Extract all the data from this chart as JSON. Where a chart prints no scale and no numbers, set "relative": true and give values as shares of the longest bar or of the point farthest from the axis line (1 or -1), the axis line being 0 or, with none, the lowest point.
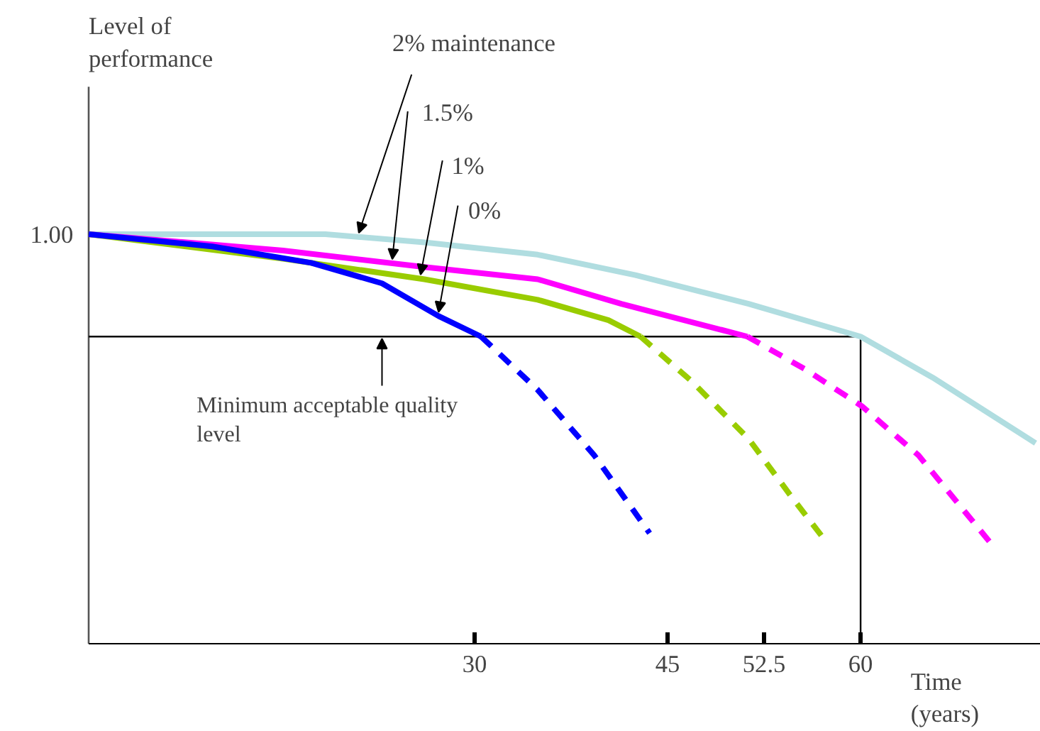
{
  "chart_data": {
    "type": "line",
    "relative": true,
    "xlabel": "Time (years)",
    "xlim": [
      0,
      74
    ],
    "xticks": [
      30,
      45,
      52.5,
      60
    ],
    "grid": false,
    "legend": false,
    "series": [
      {
        "name": "2% maintenance",
        "color": "#b0dde0",
        "line_style": "solid",
        "x": [
          0,
          9.6,
          18.4,
          26.1,
          34.9,
          42.5,
          51.3,
          60,
          65.6,
          73.6
        ],
        "values": [
          1.0,
          1.0,
          1.0,
          0.98,
          0.95,
          0.9,
          0.83,
          0.75,
          0.65,
          0.49
        ]
      },
      {
        "name": "1.5%",
        "color": "#ff00ff",
        "line_style": "solid",
        "x": [
          0,
          15.1,
          26.1,
          34.9,
          41.4,
          51.2
        ],
        "values": [
          1.0,
          0.96,
          0.92,
          0.89,
          0.83,
          0.75
        ]
      },
      {
        "name": "1%",
        "color": "#99cc00",
        "line_style": "solid",
        "x": [
          0,
          15.1,
          26.1,
          34.9,
          40.4,
          42.9
        ],
        "values": [
          1.0,
          0.94,
          0.89,
          0.84,
          0.79,
          0.75
        ]
      },
      {
        "name": "0%",
        "color": "#0000ff",
        "line_style": "solid",
        "x": [
          0,
          9.6,
          17.3,
          22.8,
          27.2,
          30.5
        ],
        "values": [
          1.0,
          0.97,
          0.93,
          0.88,
          0.8,
          0.75
        ]
      },
      {
        "color": "#ff00ff",
        "line_style": "dashed",
        "x": [
          51.2,
          55.7,
          60.1,
          64.5,
          70
        ],
        "values": [
          0.75,
          0.67,
          0.58,
          0.46,
          0.25
        ]
      },
      {
        "color": "#99cc00",
        "line_style": "dashed",
        "x": [
          42.9,
          46.9,
          51.3,
          54.6,
          57.3
        ],
        "values": [
          0.75,
          0.64,
          0.5,
          0.36,
          0.25
        ]
      },
      {
        "color": "#0000ff",
        "line_style": "dashed",
        "x": [
          30.5,
          34.9,
          39.3,
          43.6
        ],
        "values": [
          0.75,
          0.62,
          0.46,
          0.27
        ]
      }
    ],
    "ref_lines": [
      {
        "axis": "y",
        "value": 0.75
      },
      {
        "axis": "x",
        "value": 60
      }
    ],
    "annotations": [
      "Level of performance",
      {
        "text": "1.00",
        "x": 0,
        "y": 1.0
      },
      {
        "text": "Minimum acceptable quality level",
        "x": 22.8,
        "y": 0.75
      }
    ]
  }
}
